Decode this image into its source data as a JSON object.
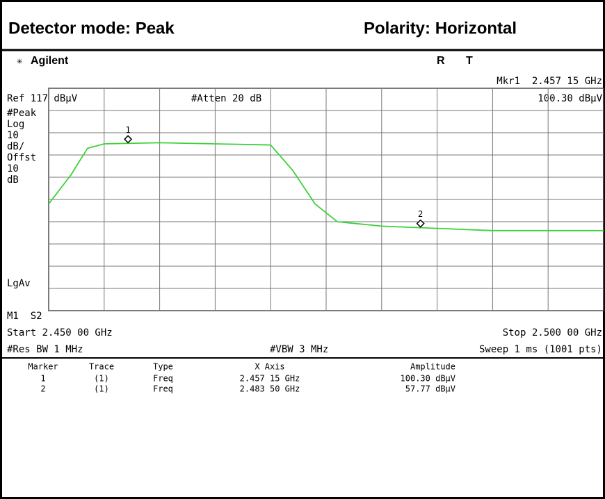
{
  "header": {
    "left": "Detector mode: Peak",
    "right": "Polarity: Horizontal"
  },
  "screen": {
    "brand": "Agilent",
    "status": [
      "R",
      "T"
    ],
    "marker_readout": "Mkr1  2.457 15 GHz",
    "marker_amplitude": "100.30 dBµV",
    "ref": "Ref 117 dBµV",
    "atten": "#Atten 20 dB",
    "left_labels": [
      "#Peak",
      "Log",
      "10",
      "dB/",
      "Offst",
      "10",
      "dB"
    ],
    "lgav": "LgAv",
    "m1s2": "M1  S2",
    "start": "Start 2.450 00 GHz",
    "stop": "Stop 2.500 00 GHz",
    "res_bw": "#Res BW 1 MHz",
    "vbw": "#VBW 3 MHz",
    "sweep": "Sweep 1 ms (1001 pts)"
  },
  "chart_data": {
    "type": "line",
    "x": [
      2.45,
      2.452,
      2.4535,
      2.455,
      2.46,
      2.465,
      2.47,
      2.472,
      2.474,
      2.476,
      2.48,
      2.485,
      2.49,
      2.495,
      2.5
    ],
    "series": [
      {
        "color": "#3ad23a",
        "values": [
          65,
          78,
          90,
          92,
          92.5,
          92,
          91.5,
          80,
          65,
          57,
          55,
          54,
          53,
          53,
          53
        ]
      }
    ],
    "xlim": [
      2.45,
      2.5
    ],
    "ylim": [
      17,
      117
    ],
    "xticks": [
      2.45,
      2.455,
      2.46,
      2.465,
      2.47,
      2.475,
      2.48,
      2.485,
      2.49,
      2.495,
      2.5
    ],
    "yticks": [
      17,
      27,
      37,
      47,
      57,
      67,
      77,
      87,
      97,
      107,
      117
    ],
    "grid": true,
    "markers": [
      {
        "label": "1",
        "x": 2.45715
      },
      {
        "label": "2",
        "x": 2.4835
      }
    ]
  },
  "table": {
    "header": [
      "Marker",
      "Trace",
      "Type",
      "X Axis",
      "Amplitude"
    ],
    "rows": [
      [
        "1",
        "(1)",
        "Freq",
        "2.457 15 GHz",
        "100.30 dBµV"
      ],
      [
        "2",
        "(1)",
        "Freq",
        "2.483 50 GHz",
        "57.77 dBµV"
      ]
    ]
  }
}
